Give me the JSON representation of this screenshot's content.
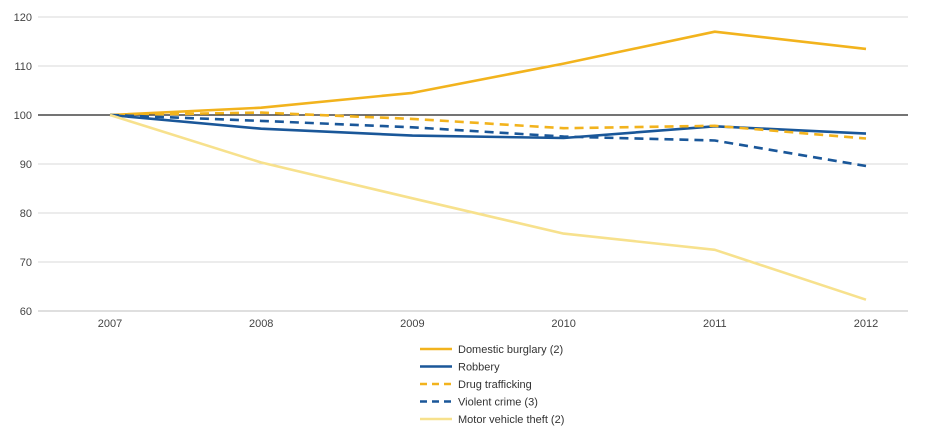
{
  "chart_data": {
    "type": "line",
    "title": "",
    "xlabel": "",
    "ylabel": "",
    "x": [
      "2007",
      "2008",
      "2009",
      "2010",
      "2011",
      "2012"
    ],
    "yticks": [
      "60",
      "70",
      "80",
      "90",
      "100",
      "110",
      "120"
    ],
    "ylim": [
      60,
      120
    ],
    "reference_line": 100,
    "grid": "horizontal",
    "legend_position": "bottom-center",
    "series": [
      {
        "name": "Domestic burglary (2)",
        "values": [
          100,
          101.5,
          104.5,
          110.5,
          117,
          113.5
        ],
        "color": "#f2b31d",
        "dash": "solid"
      },
      {
        "name": "Robbery",
        "values": [
          100,
          97.2,
          95.8,
          95.3,
          97.7,
          96.2
        ],
        "color": "#1a5799",
        "dash": "solid"
      },
      {
        "name": "Drug trafficking",
        "values": [
          100,
          100.5,
          99.2,
          97.3,
          97.8,
          95.2
        ],
        "color": "#f2b31d",
        "dash": "dashed"
      },
      {
        "name": "Violent crime (3)",
        "values": [
          100,
          98.8,
          97.5,
          95.6,
          94.8,
          89.6
        ],
        "color": "#1a5799",
        "dash": "dashed"
      },
      {
        "name": "Motor vehicle theft (2)",
        "values": [
          100,
          90.3,
          83,
          75.8,
          72.5,
          62.3
        ],
        "color": "#f7e18d",
        "dash": "solid"
      }
    ]
  }
}
